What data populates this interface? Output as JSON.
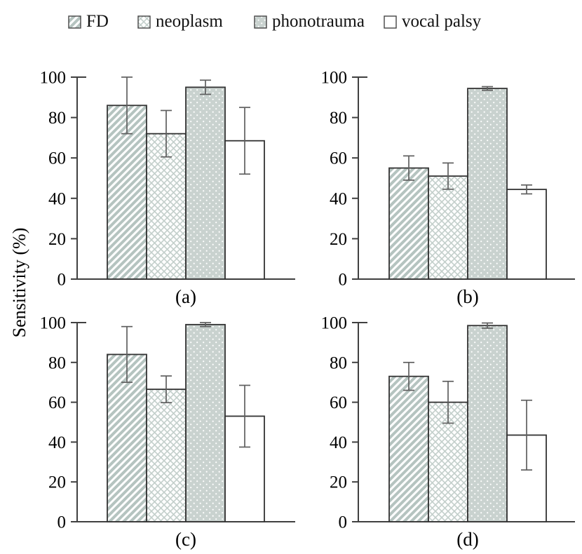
{
  "figure": {
    "ylabel": "Sensitivity (%)"
  },
  "legend": {
    "position": "top",
    "items": [
      {
        "label": "FD",
        "pattern": "diagonal-hatch"
      },
      {
        "label": "neoplasm",
        "pattern": "diamond-lattice"
      },
      {
        "label": "phonotrauma",
        "pattern": "gray-dotted"
      },
      {
        "label": "vocal palsy",
        "pattern": "plain-white"
      }
    ]
  },
  "colors": {
    "hatch_stroke": "#b5c4c0",
    "lattice_stroke": "#c3cfcb",
    "phonotrauma_fill": "#c9d2cf",
    "dot_fill": "#ffffff",
    "bar_border": "#333333",
    "axis": "#404040",
    "error_bar": "#5f5f5f",
    "text": "#000000",
    "background": "#ffffff"
  },
  "chart_data": [
    {
      "type": "bar",
      "label": "(a)",
      "categories": [
        "FD",
        "neoplasm",
        "phonotrauma",
        "vocal palsy"
      ],
      "values": [
        86,
        72,
        95,
        68.5
      ],
      "errors": [
        14,
        11.5,
        3.5,
        16.5
      ],
      "ylabel": "Sensitivity (%)",
      "ylim": [
        0,
        100
      ],
      "yticks": [
        0,
        20,
        40,
        60,
        80,
        100
      ],
      "grid": false
    },
    {
      "type": "bar",
      "label": "(b)",
      "categories": [
        "FD",
        "neoplasm",
        "phonotrauma",
        "vocal palsy"
      ],
      "values": [
        55,
        51,
        94.4,
        44.4
      ],
      "errors": [
        6,
        6.5,
        0.9,
        2.2
      ],
      "ylabel": "Sensitivity (%)",
      "ylim": [
        0,
        100
      ],
      "yticks": [
        0,
        20,
        40,
        60,
        80,
        100
      ],
      "grid": false
    },
    {
      "type": "bar",
      "label": "(c)",
      "categories": [
        "FD",
        "neoplasm",
        "phonotrauma",
        "vocal palsy"
      ],
      "values": [
        84,
        66.5,
        99,
        53
      ],
      "errors": [
        14,
        6.7,
        1,
        15.5
      ],
      "ylabel": "Sensitivity (%)",
      "ylim": [
        0,
        100
      ],
      "yticks": [
        0,
        20,
        40,
        60,
        80,
        100
      ],
      "grid": false
    },
    {
      "type": "bar",
      "label": "(d)",
      "categories": [
        "FD",
        "neoplasm",
        "phonotrauma",
        "vocal palsy"
      ],
      "values": [
        73,
        60,
        98.5,
        43.5
      ],
      "errors": [
        7,
        10.5,
        1.3,
        17.5
      ],
      "ylabel": "Sensitivity (%)",
      "ylim": [
        0,
        100
      ],
      "yticks": [
        0,
        20,
        40,
        60,
        80,
        100
      ],
      "grid": false
    }
  ]
}
